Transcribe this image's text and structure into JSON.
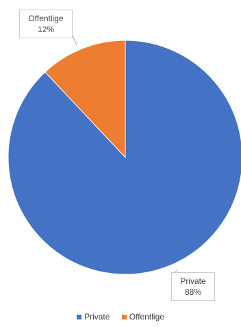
{
  "chart_data": {
    "type": "pie",
    "slices": [
      {
        "label": "Private",
        "value": 88,
        "display": "88%",
        "color": "#4472c4"
      },
      {
        "label": "Offentlige",
        "value": 12,
        "display": "12%",
        "color": "#ed7d31"
      }
    ],
    "legend_position": "bottom"
  }
}
